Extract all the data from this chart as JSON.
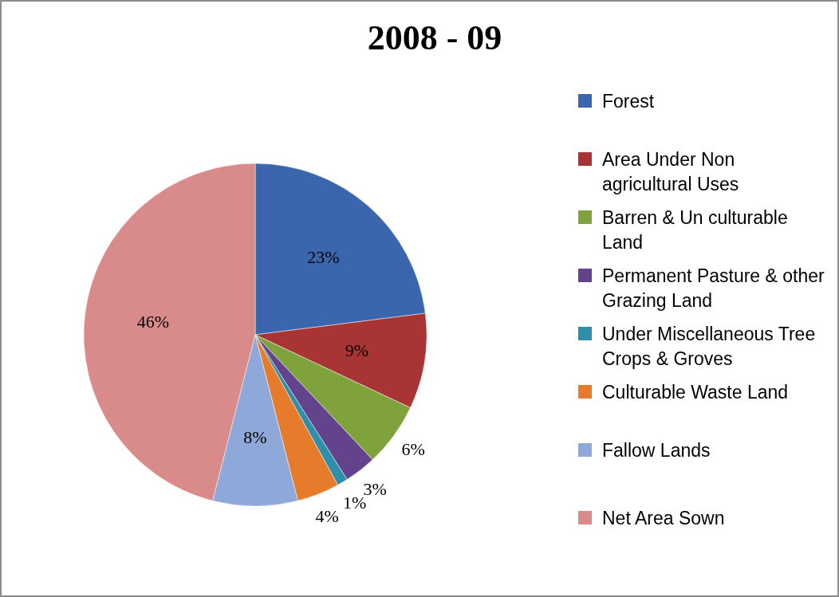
{
  "chart_data": {
    "type": "pie",
    "title": "2008 - 09",
    "categories": [
      "Forest",
      "Area Under Non agricultural Uses",
      "Barren & Un culturable Land",
      "Permanent Pasture & other Grazing Land",
      "Under Miscellaneous Tree Crops & Groves",
      "Culturable Waste Land",
      "Fallow Lands",
      "Net Area Sown"
    ],
    "values": [
      23,
      9,
      6,
      3,
      1,
      4,
      8,
      46
    ],
    "value_labels": [
      "23%",
      "9%",
      "6%",
      "3%",
      "1%",
      "4%",
      "8%",
      "46%"
    ],
    "colors": [
      "#3b66ae",
      "#a93434",
      "#7fa23c",
      "#62438c",
      "#2f8fa9",
      "#e67b2b",
      "#8ea8d9",
      "#d98b8b"
    ],
    "legend": "right"
  }
}
